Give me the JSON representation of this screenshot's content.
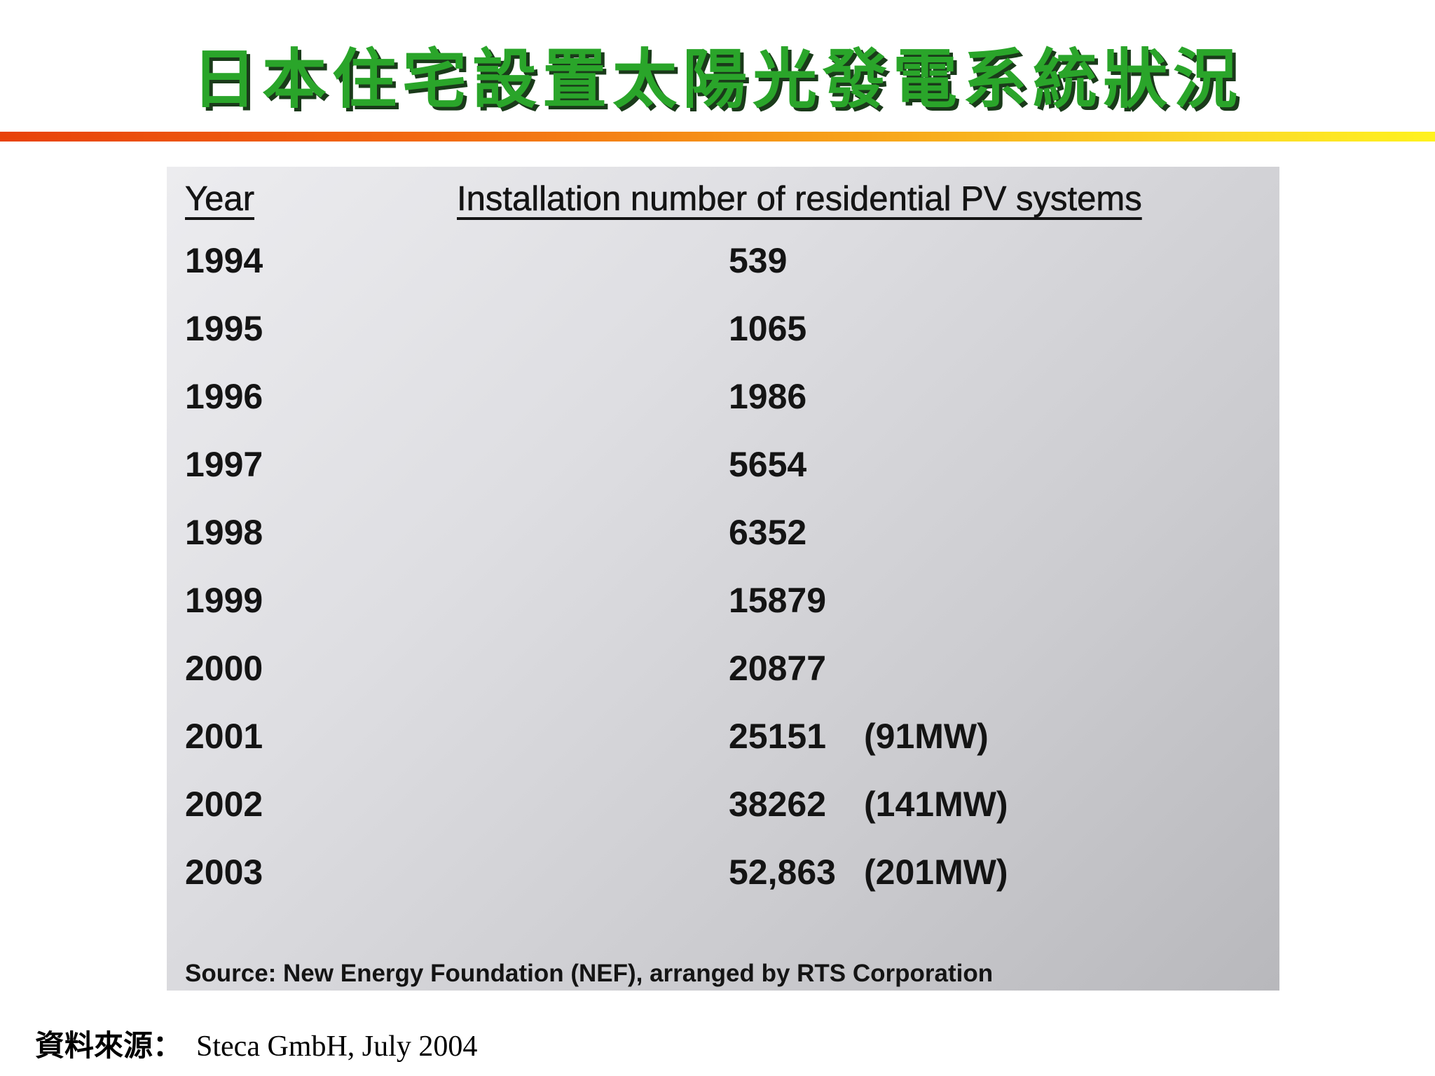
{
  "title": "日本住宅設置太陽光發電系統狀況",
  "table": {
    "header_year": "Year",
    "header_count": "Installation number of residential PV systems",
    "rows": [
      {
        "year": "1994",
        "count": "539",
        "mw": ""
      },
      {
        "year": "1995",
        "count": "1065",
        "mw": ""
      },
      {
        "year": "1996",
        "count": "1986",
        "mw": ""
      },
      {
        "year": "1997",
        "count": "5654",
        "mw": ""
      },
      {
        "year": "1998",
        "count": "6352",
        "mw": ""
      },
      {
        "year": "1999",
        "count": "15879",
        "mw": ""
      },
      {
        "year": "2000",
        "count": "20877",
        "mw": ""
      },
      {
        "year": "2001",
        "count": "25151",
        "mw": "(91MW)"
      },
      {
        "year": "2002",
        "count": "38262",
        "mw": "(141MW)"
      },
      {
        "year": "2003",
        "count": "52,863",
        "mw": "(201MW)"
      }
    ],
    "source": "Source: New Energy Foundation (NEF), arranged by RTS Corporation"
  },
  "footer": {
    "label": "資料來源：",
    "text": "Steca GmbH, July 2004"
  },
  "colors": {
    "title_green": "#2aa52a",
    "rule_start": "#e8420a",
    "rule_end": "#fff21e"
  }
}
